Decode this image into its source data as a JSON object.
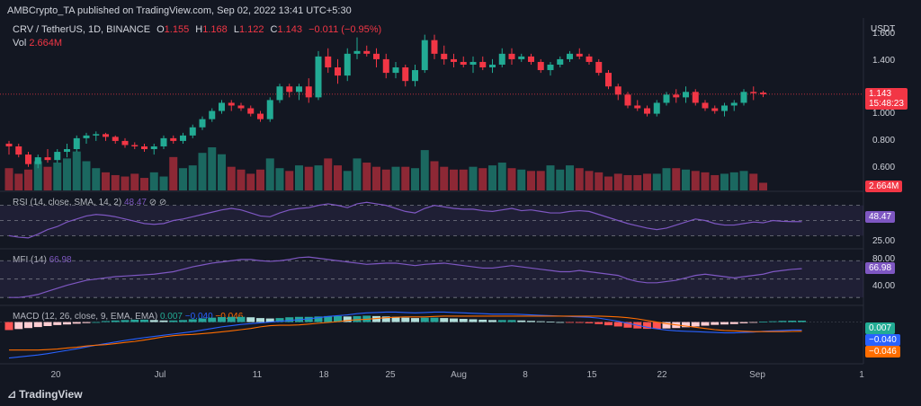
{
  "header": {
    "publisher": "AMBCrypto_TA published on TradingView.com, Sep 02, 2022 13:41 UTC+5:30",
    "symbol": "CRV / TetherUS, 1D, BINANCE",
    "o_label": "O",
    "o_val": "1.155",
    "h_label": "H",
    "h_val": "1.168",
    "l_label": "L",
    "l_val": "1.122",
    "c_label": "C",
    "c_val": "1.143",
    "change": "−0.011 (−0.95%)",
    "vol_label": "Vol",
    "vol_val": "2.664M"
  },
  "currency": "USDT",
  "price_axis": [
    "1.600",
    "1.400",
    "1.200",
    "1.000",
    "0.800",
    "0.600"
  ],
  "price_badge": {
    "price": "1.143",
    "timer": "15:48:23"
  },
  "vol_badge": "2.664M",
  "rsi": {
    "label": "RSI (14, close, SMA, 14, 2)",
    "value": "48.47",
    "icons": "⊘ ⊘",
    "axis": [
      "25.00"
    ],
    "badge": "48.47"
  },
  "mfi": {
    "label": "MFI (14)",
    "value": "66.98",
    "axis": [
      "80.00",
      "40.00"
    ],
    "badge": "66.98"
  },
  "macd": {
    "label": "MACD (12, 26, close, 9, EMA, EMA)",
    "hist": "0.007",
    "macd": "−0.040",
    "signal": "−0.046",
    "badges": [
      "0.007",
      "−0.040",
      "−0.046"
    ]
  },
  "x_labels": [
    "20",
    "Jul",
    "11",
    "18",
    "25",
    "Aug",
    "8",
    "15",
    "22",
    "Sep",
    "1"
  ],
  "footer": "TradingView",
  "colors": {
    "up": "#22ab94",
    "down": "#f23645",
    "purple": "#7e57c2",
    "blue": "#2962ff",
    "orange": "#ff6d00"
  },
  "chart_data": {
    "type": "candlestick",
    "title": "CRV / TetherUS, 1D, BINANCE",
    "ylim": [
      0.45,
      1.65
    ],
    "candles": [
      [
        0.78,
        0.8,
        0.7,
        0.76
      ],
      [
        0.76,
        0.78,
        0.68,
        0.7
      ],
      [
        0.7,
        0.72,
        0.61,
        0.63
      ],
      [
        0.63,
        0.7,
        0.6,
        0.68
      ],
      [
        0.68,
        0.74,
        0.64,
        0.66
      ],
      [
        0.66,
        0.74,
        0.64,
        0.72
      ],
      [
        0.72,
        0.78,
        0.68,
        0.74
      ],
      [
        0.74,
        0.84,
        0.72,
        0.82
      ],
      [
        0.82,
        0.86,
        0.78,
        0.84
      ],
      [
        0.84,
        0.87,
        0.8,
        0.85
      ],
      [
        0.85,
        0.86,
        0.8,
        0.83
      ],
      [
        0.83,
        0.84,
        0.78,
        0.8
      ],
      [
        0.8,
        0.82,
        0.75,
        0.77
      ],
      [
        0.77,
        0.79,
        0.74,
        0.76
      ],
      [
        0.76,
        0.78,
        0.72,
        0.74
      ],
      [
        0.74,
        0.78,
        0.7,
        0.76
      ],
      [
        0.76,
        0.84,
        0.74,
        0.82
      ],
      [
        0.82,
        0.84,
        0.78,
        0.8
      ],
      [
        0.8,
        0.86,
        0.78,
        0.84
      ],
      [
        0.84,
        0.92,
        0.82,
        0.9
      ],
      [
        0.9,
        0.98,
        0.88,
        0.96
      ],
      [
        0.96,
        1.04,
        0.94,
        1.02
      ],
      [
        1.02,
        1.1,
        1.0,
        1.08
      ],
      [
        1.08,
        1.1,
        1.02,
        1.06
      ],
      [
        1.06,
        1.08,
        1.02,
        1.04
      ],
      [
        1.04,
        1.06,
        0.98,
        1.0
      ],
      [
        1.0,
        1.02,
        0.94,
        0.96
      ],
      [
        0.96,
        1.12,
        0.94,
        1.1
      ],
      [
        1.1,
        1.22,
        1.08,
        1.2
      ],
      [
        1.2,
        1.22,
        1.12,
        1.16
      ],
      [
        1.16,
        1.22,
        1.1,
        1.2
      ],
      [
        1.2,
        1.26,
        1.08,
        1.12
      ],
      [
        1.12,
        1.46,
        1.1,
        1.42
      ],
      [
        1.42,
        1.48,
        1.3,
        1.34
      ],
      [
        1.34,
        1.4,
        1.22,
        1.28
      ],
      [
        1.28,
        1.48,
        1.24,
        1.44
      ],
      [
        1.44,
        1.56,
        1.4,
        1.46
      ],
      [
        1.46,
        1.5,
        1.42,
        1.44
      ],
      [
        1.44,
        1.48,
        1.34,
        1.4
      ],
      [
        1.4,
        1.44,
        1.26,
        1.3
      ],
      [
        1.3,
        1.38,
        1.26,
        1.34
      ],
      [
        1.34,
        1.36,
        1.2,
        1.24
      ],
      [
        1.24,
        1.36,
        1.2,
        1.32
      ],
      [
        1.32,
        1.58,
        1.3,
        1.54
      ],
      [
        1.54,
        1.58,
        1.4,
        1.44
      ],
      [
        1.44,
        1.5,
        1.36,
        1.4
      ],
      [
        1.4,
        1.44,
        1.34,
        1.38
      ],
      [
        1.38,
        1.42,
        1.34,
        1.36
      ],
      [
        1.36,
        1.42,
        1.3,
        1.38
      ],
      [
        1.38,
        1.42,
        1.32,
        1.34
      ],
      [
        1.34,
        1.4,
        1.3,
        1.36
      ],
      [
        1.36,
        1.48,
        1.34,
        1.44
      ],
      [
        1.44,
        1.48,
        1.36,
        1.4
      ],
      [
        1.4,
        1.44,
        1.38,
        1.42
      ],
      [
        1.42,
        1.44,
        1.36,
        1.38
      ],
      [
        1.38,
        1.4,
        1.3,
        1.32
      ],
      [
        1.32,
        1.38,
        1.28,
        1.36
      ],
      [
        1.36,
        1.42,
        1.34,
        1.4
      ],
      [
        1.4,
        1.46,
        1.38,
        1.44
      ],
      [
        1.44,
        1.48,
        1.4,
        1.42
      ],
      [
        1.42,
        1.44,
        1.36,
        1.38
      ],
      [
        1.38,
        1.4,
        1.28,
        1.3
      ],
      [
        1.3,
        1.32,
        1.18,
        1.2
      ],
      [
        1.2,
        1.22,
        1.1,
        1.14
      ],
      [
        1.14,
        1.16,
        1.04,
        1.06
      ],
      [
        1.06,
        1.1,
        1.02,
        1.04
      ],
      [
        1.04,
        1.06,
        0.98,
        1.0
      ],
      [
        1.0,
        1.1,
        0.98,
        1.08
      ],
      [
        1.08,
        1.16,
        1.06,
        1.14
      ],
      [
        1.14,
        1.18,
        1.08,
        1.12
      ],
      [
        1.12,
        1.2,
        1.08,
        1.16
      ],
      [
        1.16,
        1.18,
        1.06,
        1.08
      ],
      [
        1.08,
        1.1,
        1.02,
        1.04
      ],
      [
        1.04,
        1.06,
        1.0,
        1.02
      ],
      [
        1.02,
        1.08,
        0.98,
        1.06
      ],
      [
        1.06,
        1.1,
        1.02,
        1.08
      ],
      [
        1.08,
        1.18,
        1.06,
        1.16
      ],
      [
        1.16,
        1.2,
        1.1,
        1.15
      ],
      [
        1.155,
        1.168,
        1.122,
        1.143
      ]
    ],
    "volume": [
      3.2,
      2.4,
      3.0,
      4.2,
      3.4,
      4.0,
      4.6,
      5.6,
      4.2,
      3.2,
      2.6,
      2.2,
      2.0,
      2.4,
      1.8,
      2.6,
      2.0,
      4.8,
      3.2,
      3.6,
      5.4,
      6.2,
      5.2,
      3.4,
      3.0,
      2.4,
      3.0,
      4.6,
      3.2,
      2.8,
      3.6,
      3.4,
      3.6,
      4.6,
      3.6,
      2.8,
      4.6,
      4.0,
      3.4,
      3.0,
      3.4,
      3.4,
      3.2,
      5.8,
      4.2,
      3.4,
      3.0,
      3.0,
      3.4,
      3.2,
      3.6,
      4.0,
      3.2,
      3.0,
      2.8,
      2.8,
      3.6,
      3.0,
      3.6,
      3.2,
      2.8,
      2.6,
      2.0,
      2.4,
      2.2,
      2.2,
      2.4,
      2.4,
      3.2,
      3.2,
      3.0,
      2.8,
      2.6,
      2.2,
      2.4,
      2.6,
      2.8,
      2.4,
      1.1
    ],
    "rsi": [
      30,
      28,
      27,
      32,
      38,
      42,
      48,
      52,
      56,
      58,
      57,
      55,
      52,
      49,
      46,
      45,
      46,
      50,
      52,
      55,
      58,
      61,
      64,
      66,
      64,
      60,
      56,
      55,
      60,
      64,
      66,
      67,
      70,
      72,
      70,
      67,
      72,
      74,
      72,
      70,
      66,
      62,
      60,
      66,
      70,
      68,
      66,
      65,
      65,
      63,
      62,
      64,
      66,
      63,
      64,
      62,
      60,
      60,
      62,
      63,
      62,
      58,
      54,
      50,
      46,
      43,
      40,
      38,
      40,
      44,
      48,
      52,
      50,
      46,
      44,
      44,
      46,
      48,
      47,
      50,
      49,
      48.5,
      48.47
    ],
    "mfi": [
      20,
      20,
      22,
      25,
      30,
      35,
      40,
      44,
      48,
      50,
      52,
      54,
      55,
      56,
      57,
      58,
      60,
      62,
      66,
      70,
      73,
      76,
      78,
      80,
      82,
      82,
      80,
      79,
      80,
      82,
      85,
      86,
      84,
      82,
      80,
      78,
      76,
      74,
      75,
      76,
      76,
      74,
      72,
      74,
      75,
      76,
      74,
      72,
      70,
      68,
      68,
      70,
      72,
      70,
      68,
      66,
      64,
      62,
      62,
      64,
      62,
      60,
      58,
      56,
      50,
      46,
      44,
      44,
      46,
      48,
      52,
      56,
      58,
      56,
      54,
      52,
      54,
      56,
      58,
      62,
      64,
      66,
      66.98
    ],
    "macd_hist": [
      -0.04,
      -0.035,
      -0.03,
      -0.025,
      -0.02,
      -0.015,
      -0.012,
      -0.008,
      -0.005,
      0.0,
      0.005,
      0.008,
      0.01,
      0.012,
      0.012,
      0.01,
      0.008,
      0.008,
      0.01,
      0.014,
      0.018,
      0.022,
      0.025,
      0.026,
      0.026,
      0.024,
      0.02,
      0.018,
      0.02,
      0.024,
      0.026,
      0.026,
      0.028,
      0.03,
      0.03,
      0.028,
      0.03,
      0.032,
      0.03,
      0.028,
      0.026,
      0.022,
      0.02,
      0.022,
      0.022,
      0.02,
      0.018,
      0.016,
      0.014,
      0.012,
      0.01,
      0.01,
      0.01,
      0.008,
      0.006,
      0.004,
      0.002,
      0.0,
      -0.002,
      -0.004,
      -0.006,
      -0.01,
      -0.016,
      -0.022,
      -0.028,
      -0.032,
      -0.034,
      -0.034,
      -0.032,
      -0.03,
      -0.026,
      -0.022,
      -0.018,
      -0.014,
      -0.012,
      -0.01,
      -0.006,
      -0.002,
      0.002,
      0.004,
      0.006,
      0.007,
      0.007
    ],
    "macd_line": [
      -0.18,
      -0.175,
      -0.17,
      -0.165,
      -0.158,
      -0.15,
      -0.142,
      -0.134,
      -0.125,
      -0.116,
      -0.108,
      -0.1,
      -0.092,
      -0.085,
      -0.078,
      -0.072,
      -0.066,
      -0.06,
      -0.054,
      -0.048,
      -0.04,
      -0.032,
      -0.024,
      -0.018,
      -0.012,
      -0.008,
      -0.004,
      0.0,
      0.004,
      0.008,
      0.012,
      0.016,
      0.022,
      0.028,
      0.032,
      0.036,
      0.042,
      0.046,
      0.048,
      0.05,
      0.05,
      0.048,
      0.046,
      0.048,
      0.05,
      0.05,
      0.048,
      0.046,
      0.044,
      0.042,
      0.04,
      0.04,
      0.04,
      0.038,
      0.036,
      0.034,
      0.032,
      0.03,
      0.028,
      0.026,
      0.024,
      0.02,
      0.012,
      0.004,
      -0.006,
      -0.016,
      -0.026,
      -0.034,
      -0.04,
      -0.044,
      -0.046,
      -0.048,
      -0.05,
      -0.052,
      -0.054,
      -0.054,
      -0.052,
      -0.05,
      -0.046,
      -0.044,
      -0.042,
      -0.04,
      -0.04
    ],
    "signal_line": [
      -0.14,
      -0.14,
      -0.14,
      -0.14,
      -0.138,
      -0.135,
      -0.13,
      -0.126,
      -0.12,
      -0.116,
      -0.113,
      -0.108,
      -0.102,
      -0.097,
      -0.09,
      -0.082,
      -0.074,
      -0.068,
      -0.064,
      -0.062,
      -0.058,
      -0.054,
      -0.049,
      -0.044,
      -0.038,
      -0.032,
      -0.024,
      -0.018,
      -0.016,
      -0.016,
      -0.014,
      -0.01,
      -0.006,
      -0.002,
      0.002,
      0.008,
      0.012,
      0.014,
      0.018,
      0.022,
      0.024,
      0.026,
      0.026,
      0.026,
      0.028,
      0.03,
      0.03,
      0.03,
      0.03,
      0.03,
      0.03,
      0.03,
      0.03,
      0.03,
      0.03,
      0.03,
      0.03,
      0.03,
      0.03,
      0.03,
      0.03,
      0.03,
      0.028,
      0.026,
      0.022,
      0.016,
      0.008,
      0.0,
      -0.008,
      -0.014,
      -0.02,
      -0.026,
      -0.032,
      -0.038,
      -0.042,
      -0.044,
      -0.046,
      -0.048,
      -0.048,
      -0.048,
      -0.048,
      -0.047,
      -0.046
    ]
  }
}
